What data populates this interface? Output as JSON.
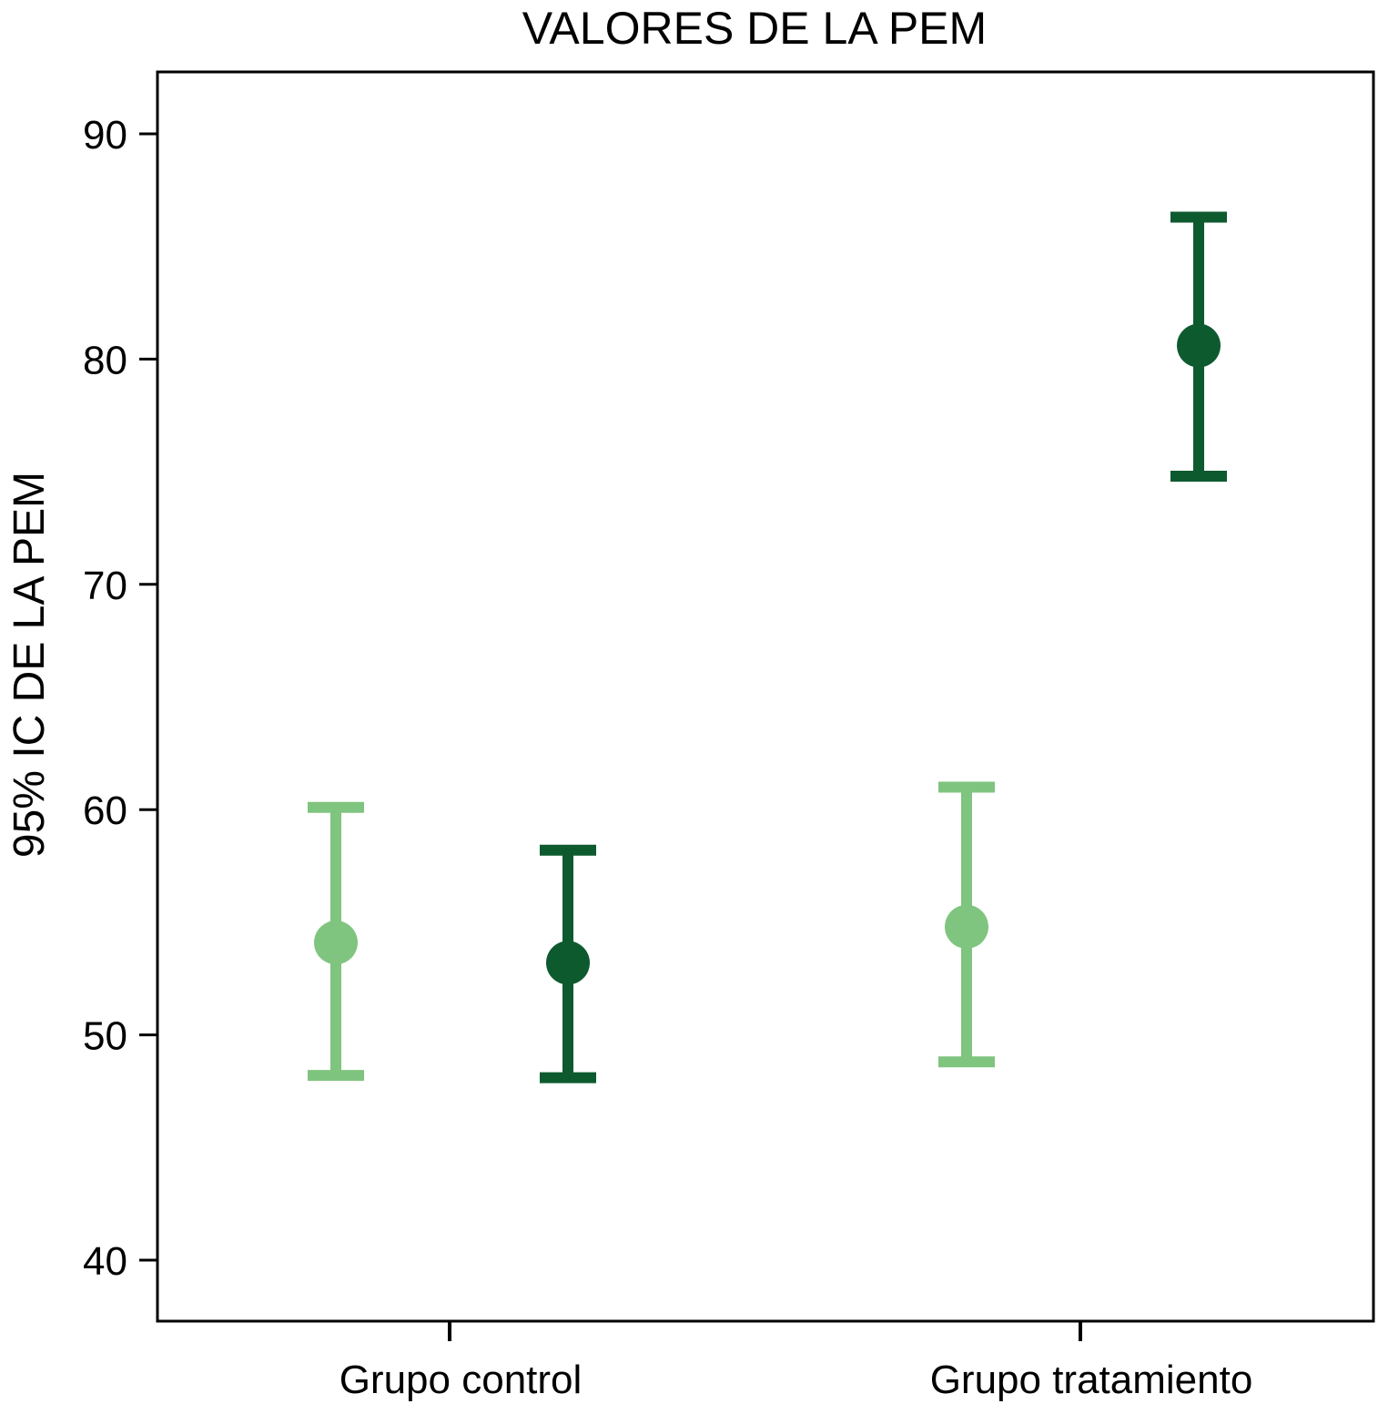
{
  "chart_data": {
    "type": "scatter",
    "subtype": "error-bar",
    "title": "VALORES DE LA PEM",
    "xlabel": "",
    "ylabel": "95% IC DE LA PEM",
    "categories": [
      "Grupo control",
      "Grupo tratamiento"
    ],
    "ylim": [
      37.3,
      92.7
    ],
    "yticks": [
      40,
      50,
      60,
      70,
      80,
      90
    ],
    "grid": false,
    "legend": "none",
    "series": [
      {
        "color": "#7fc47f",
        "points": [
          {
            "category": "Grupo control",
            "mean": 54.1,
            "lower": 48.2,
            "upper": 60.1
          },
          {
            "category": "Grupo tratamiento",
            "mean": 54.8,
            "lower": 48.8,
            "upper": 61.0
          }
        ]
      },
      {
        "color": "#0e5a2f",
        "points": [
          {
            "category": "Grupo control",
            "mean": 53.2,
            "lower": 48.1,
            "upper": 58.2
          },
          {
            "category": "Grupo tratamiento",
            "mean": 80.6,
            "lower": 74.8,
            "upper": 86.3
          }
        ]
      }
    ]
  }
}
